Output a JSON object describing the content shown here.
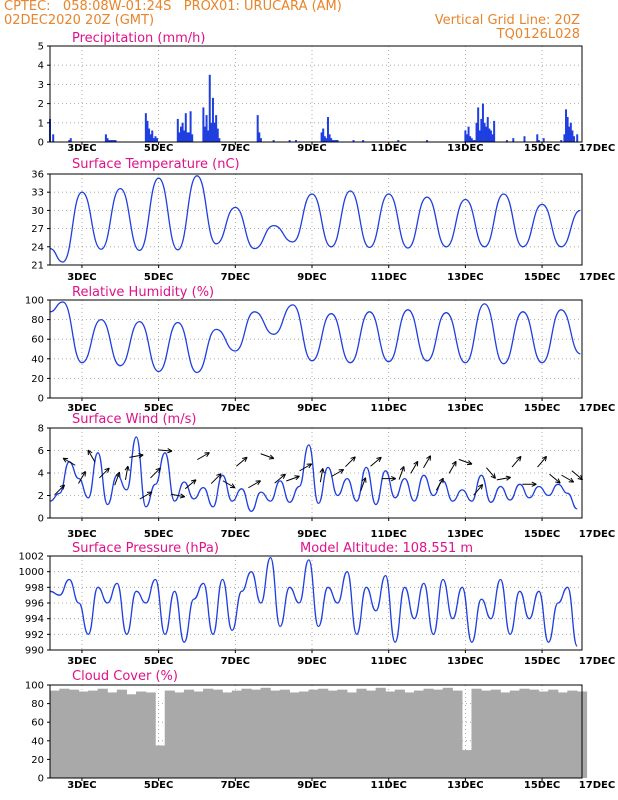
{
  "header": {
    "line1_left": "CPTEC:   058:08W-01:24S   PROX01: URUCARA (AM)",
    "line2_left": "02DEC2020 20Z (GMT)",
    "line2_right": "Vertical Grid Line: 20Z",
    "line3_right": "TQ0126L028"
  },
  "colors": {
    "header": "#e8842a",
    "panel_title": "#e0118a",
    "line": "#1f3fe0",
    "cloud_fill": "#a9a9a9",
    "grid": "#9a9a9a"
  },
  "chart_data": [
    {
      "type": "bar",
      "title": "Precipitation (mm/h)",
      "ylim": [
        0,
        5
      ],
      "yticks": [
        0,
        1,
        2,
        3,
        4,
        5
      ],
      "xticks": [
        "3DEC",
        "5DEC",
        "7DEC",
        "9DEC",
        "11DEC",
        "13DEC",
        "15DEC",
        "17DEC"
      ],
      "grid": true,
      "x_unit": "hours since 02DEC2020 20Z",
      "x": [
        0,
        2,
        12,
        13,
        35,
        36,
        37,
        38,
        39,
        40,
        41,
        60,
        61,
        62,
        63,
        64,
        65,
        66,
        67,
        80,
        81,
        82,
        83,
        84,
        85,
        86,
        87,
        88,
        89,
        96,
        97,
        98,
        99,
        100,
        101,
        102,
        103,
        104,
        105,
        106,
        130,
        131,
        132,
        140,
        150,
        154,
        170,
        171,
        172,
        173,
        174,
        175,
        176,
        177,
        178,
        179,
        180,
        190,
        196,
        218,
        236,
        260,
        261,
        262,
        263,
        264,
        265,
        266,
        267,
        268,
        269,
        270,
        271,
        272,
        273,
        274,
        275,
        276,
        277,
        278,
        286,
        290,
        297,
        305,
        306,
        309,
        320,
        322,
        323,
        324,
        325,
        326,
        327,
        328,
        330
      ],
      "values": [
        1.2,
        0.4,
        0.1,
        0.2,
        0.4,
        0.2,
        0.1,
        0.1,
        0.1,
        0.1,
        0.1,
        1.5,
        1.1,
        0.7,
        0.4,
        0.6,
        0.2,
        0.3,
        0.2,
        1.2,
        0.5,
        0.8,
        1.0,
        0.6,
        1.5,
        0.5,
        0.5,
        1.6,
        0.4,
        1.8,
        0.8,
        1.4,
        0.6,
        3.5,
        1.0,
        2.3,
        1.0,
        1.4,
        0.7,
        0.2,
        1.4,
        0.5,
        0.2,
        0.1,
        0.1,
        0.1,
        0.5,
        0.7,
        0.3,
        0.2,
        1.3,
        0.4,
        0.2,
        0.1,
        0.1,
        0.1,
        0.1,
        0.1,
        0.1,
        0.1,
        0.1,
        0.6,
        0.4,
        0.8,
        0.3,
        0.2,
        0.1,
        0.1,
        1.0,
        1.8,
        0.6,
        1.2,
        2.0,
        1.0,
        0.8,
        1.3,
        0.7,
        0.6,
        0.4,
        1.1,
        0.1,
        0.2,
        0.3,
        0.4,
        0.1,
        0.2,
        0.1,
        0.4,
        1.7,
        1.3,
        0.8,
        1.0,
        0.6,
        0.3,
        0.4
      ]
    },
    {
      "type": "line",
      "title": "Surface Temperature (nC)",
      "ylim": [
        21,
        36
      ],
      "yticks": [
        21,
        24,
        27,
        30,
        33,
        36
      ],
      "xticks": [
        "3DEC",
        "5DEC",
        "7DEC",
        "9DEC",
        "11DEC",
        "13DEC",
        "15DEC",
        "17DEC"
      ],
      "grid": true,
      "x_unit": "hours since 02DEC2020 20Z",
      "x": [
        0,
        8,
        20,
        32,
        44,
        56,
        68,
        80,
        92,
        104,
        116,
        128,
        140,
        152,
        164,
        176,
        188,
        200,
        212,
        224,
        236,
        248,
        260,
        272,
        284,
        296,
        308,
        320,
        332
      ],
      "values": [
        23.7,
        21.5,
        33.0,
        23.6,
        33.6,
        23.4,
        35.3,
        23.5,
        35.7,
        24.5,
        30.5,
        23.7,
        27.5,
        24.8,
        32.7,
        24.0,
        33.2,
        23.9,
        32.7,
        23.8,
        32.2,
        24.0,
        31.8,
        24.0,
        32.7,
        24.0,
        31.0,
        24.0,
        30.0
      ]
    },
    {
      "type": "line",
      "title": "Relative Humidity (%)",
      "ylim": [
        0,
        100
      ],
      "yticks": [
        0,
        20,
        40,
        60,
        80,
        100
      ],
      "xticks": [
        "3DEC",
        "5DEC",
        "7DEC",
        "9DEC",
        "11DEC",
        "13DEC",
        "15DEC",
        "17DEC"
      ],
      "grid": true,
      "x_unit": "hours since 02DEC2020 20Z",
      "x": [
        0,
        8,
        20,
        32,
        44,
        56,
        68,
        80,
        92,
        104,
        116,
        128,
        140,
        152,
        164,
        176,
        188,
        200,
        212,
        224,
        236,
        248,
        260,
        272,
        284,
        296,
        308,
        320,
        332
      ],
      "values": [
        88,
        98,
        36,
        80,
        33,
        78,
        27,
        77,
        26,
        70,
        48,
        88,
        65,
        95,
        38,
        86,
        36,
        88,
        37,
        90,
        38,
        87,
        36,
        96,
        35,
        88,
        36,
        90,
        45
      ]
    },
    {
      "type": "line",
      "title": "Surface Wind (m/s)",
      "ylim": [
        0,
        8
      ],
      "yticks": [
        0,
        2,
        4,
        6,
        8
      ],
      "xticks": [
        "3DEC",
        "5DEC",
        "7DEC",
        "9DEC",
        "11DEC",
        "13DEC",
        "15DEC",
        "17DEC"
      ],
      "grid": true,
      "x_unit": "hours since 02DEC2020 20Z",
      "x": [
        0,
        6,
        12,
        18,
        24,
        30,
        36,
        42,
        48,
        54,
        60,
        66,
        72,
        78,
        84,
        90,
        96,
        102,
        108,
        114,
        120,
        126,
        132,
        138,
        144,
        150,
        156,
        162,
        168,
        174,
        180,
        186,
        192,
        198,
        204,
        210,
        216,
        222,
        228,
        234,
        240,
        246,
        252,
        258,
        264,
        270,
        276,
        282,
        288,
        294,
        300,
        306,
        312,
        318,
        324,
        330
      ],
      "values": [
        1.5,
        2.2,
        5.0,
        3.5,
        1.8,
        5.8,
        1.2,
        3.8,
        2.5,
        7.2,
        1.0,
        3.0,
        5.8,
        1.5,
        3.2,
        1.7,
        2.7,
        1.0,
        3.8,
        1.5,
        2.6,
        0.6,
        2.3,
        1.5,
        3.3,
        1.4,
        2.8,
        6.5,
        1.3,
        4.5,
        2.0,
        3.5,
        1.5,
        4.5,
        1.2,
        4.2,
        1.8,
        3.5,
        1.5,
        3.8,
        2.0,
        3.3,
        1.5,
        2.5,
        1.5,
        3.8,
        1.4,
        2.8,
        1.6,
        3.0,
        1.8,
        2.8,
        2.0,
        3.0,
        2.2,
        0.8
      ],
      "vectors": {
        "x": [
          6,
          12,
          20,
          26,
          34,
          42,
          48,
          54,
          60,
          66,
          72,
          80,
          88,
          96,
          104,
          112,
          120,
          128,
          136,
          144,
          152,
          160,
          170,
          180,
          188,
          196,
          204,
          212,
          220,
          228,
          236,
          244,
          252,
          260,
          268,
          276,
          284,
          292,
          300,
          308,
          316,
          324,
          330
        ],
        "speed": [
          2.5,
          5.0,
          3.6,
          5.5,
          4.0,
          3.5,
          4.0,
          5.5,
          2.0,
          4.0,
          6.0,
          2.0,
          3.0,
          5.5,
          3.5,
          3.0,
          5.0,
          3.0,
          5.5,
          3.5,
          3.5,
          4.5,
          3.8,
          4.0,
          5.0,
          3.0,
          5.0,
          3.5,
          4.0,
          4.5,
          5.0,
          3.0,
          4.5,
          5.0,
          2.5,
          4.0,
          3.5,
          5.0,
          3.0,
          5.0,
          3.5,
          3.5,
          3.8
        ],
        "dir_deg": [
          45,
          300,
          30,
          330,
          45,
          20,
          10,
          80,
          60,
          45,
          95,
          100,
          50,
          60,
          45,
          120,
          50,
          60,
          110,
          50,
          70,
          60,
          10,
          60,
          45,
          20,
          50,
          90,
          20,
          30,
          30,
          30,
          30,
          110,
          40,
          140,
          80,
          40,
          90,
          40,
          130,
          120,
          130
        ]
      }
    },
    {
      "type": "line",
      "title": "Surface Pressure (hPa)",
      "annotation": "Model Altitude: 108.551 m",
      "ylim": [
        990,
        1002
      ],
      "yticks": [
        990,
        992,
        994,
        996,
        998,
        1000,
        1002
      ],
      "xticks": [
        "3DEC",
        "5DEC",
        "7DEC",
        "9DEC",
        "11DEC",
        "13DEC",
        "15DEC",
        "17DEC"
      ],
      "grid": true,
      "x_unit": "hours since 02DEC2020 20Z",
      "x": [
        0,
        6,
        12,
        18,
        24,
        30,
        36,
        42,
        48,
        54,
        60,
        66,
        72,
        78,
        84,
        90,
        96,
        102,
        108,
        114,
        120,
        126,
        132,
        138,
        144,
        150,
        156,
        162,
        168,
        174,
        180,
        186,
        192,
        198,
        204,
        210,
        216,
        222,
        228,
        234,
        240,
        246,
        252,
        258,
        264,
        270,
        276,
        282,
        288,
        294,
        300,
        306,
        312,
        318,
        324,
        330
      ],
      "values": [
        997.5,
        997,
        999,
        996,
        992,
        998,
        996,
        998.5,
        992,
        997.5,
        996,
        999,
        992,
        997.5,
        991,
        996.5,
        998.5,
        992,
        999,
        992.5,
        997.5,
        1000,
        996,
        1001.8,
        993,
        998,
        996,
        1001.5,
        993,
        998,
        996,
        1000,
        992,
        998,
        995,
        999.5,
        991,
        998,
        994,
        998.5,
        992,
        999,
        994,
        998,
        991,
        996.5,
        994,
        999,
        992,
        997.5,
        994,
        997.5,
        991,
        996,
        998,
        990.5
      ]
    },
    {
      "type": "area",
      "title": "Cloud Cover (%)",
      "ylim": [
        0,
        100
      ],
      "yticks": [
        0,
        20,
        40,
        60,
        80,
        100
      ],
      "xticks": [
        "3DEC",
        "5DEC",
        "7DEC",
        "9DEC",
        "11DEC",
        "13DEC",
        "15DEC",
        "17DEC"
      ],
      "grid": true,
      "x_unit": "hours since 02DEC2020 20Z",
      "x": [
        0,
        6,
        12,
        18,
        24,
        30,
        36,
        42,
        48,
        54,
        60,
        66,
        72,
        78,
        84,
        90,
        96,
        102,
        108,
        114,
        120,
        126,
        132,
        138,
        144,
        150,
        156,
        162,
        168,
        174,
        180,
        186,
        192,
        198,
        204,
        210,
        216,
        222,
        228,
        234,
        240,
        246,
        252,
        258,
        264,
        270,
        276,
        282,
        288,
        294,
        300,
        306,
        312,
        318,
        324,
        330
      ],
      "values": [
        94,
        96,
        95,
        93,
        94,
        96,
        92,
        95,
        90,
        93,
        92,
        35,
        94,
        92,
        95,
        93,
        96,
        95,
        92,
        94,
        96,
        95,
        97,
        94,
        95,
        92,
        93,
        95,
        96,
        94,
        95,
        92,
        96,
        94,
        97,
        93,
        95,
        92,
        94,
        96,
        95,
        97,
        94,
        30,
        96,
        94,
        95,
        92,
        94,
        96,
        95,
        93,
        95,
        92,
        94,
        93
      ]
    }
  ]
}
